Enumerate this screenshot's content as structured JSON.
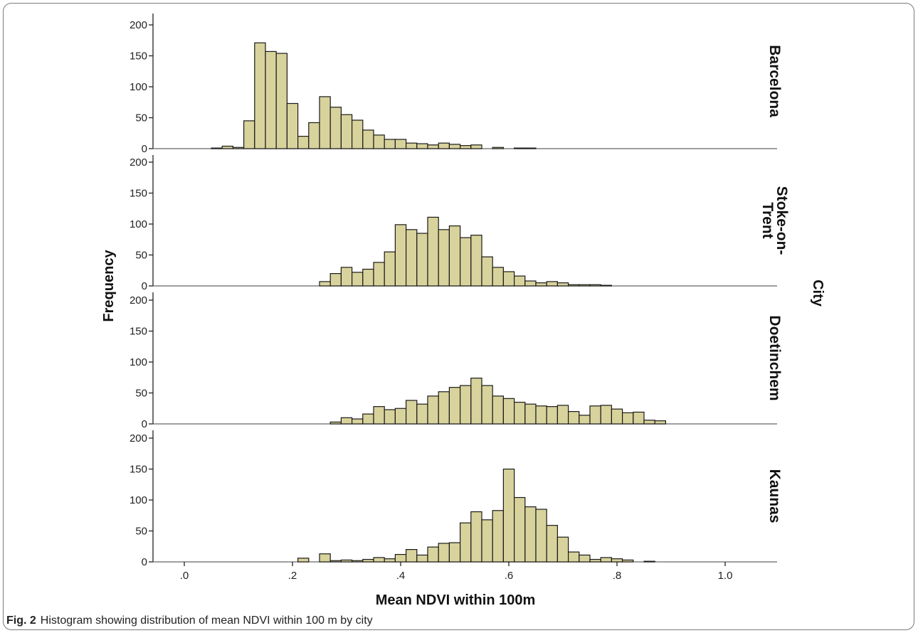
{
  "chart_data": {
    "type": "bar",
    "subtype": "faceted-histogram",
    "xlabel": "Mean NDVI within 100m",
    "ylabel": "Frequency",
    "facet_label": "City",
    "bin_width": 0.02,
    "xlim": [
      -0.05,
      1.07
    ],
    "ylim": [
      0,
      200
    ],
    "xticks": [
      0.0,
      0.2,
      0.4,
      0.6,
      0.8,
      1.0
    ],
    "xtick_labels": [
      ".0",
      ".2",
      ".4",
      ".6",
      ".8",
      "1.0"
    ],
    "yticks": [
      0,
      50,
      100,
      150,
      200
    ],
    "ytick_labels": [
      "0",
      "50",
      "100",
      "150",
      "200"
    ],
    "bar_color": "#d8d39c",
    "bar_edge_color": "#1a1a1a",
    "panels": [
      {
        "name_lines": [
          "Barcelona"
        ],
        "bins": [
          {
            "x": 0.06,
            "y": 1
          },
          {
            "x": 0.08,
            "y": 4
          },
          {
            "x": 0.1,
            "y": 2
          },
          {
            "x": 0.12,
            "y": 45
          },
          {
            "x": 0.14,
            "y": 171
          },
          {
            "x": 0.16,
            "y": 157
          },
          {
            "x": 0.18,
            "y": 154
          },
          {
            "x": 0.2,
            "y": 73
          },
          {
            "x": 0.22,
            "y": 20
          },
          {
            "x": 0.24,
            "y": 42
          },
          {
            "x": 0.26,
            "y": 84
          },
          {
            "x": 0.28,
            "y": 67
          },
          {
            "x": 0.3,
            "y": 55
          },
          {
            "x": 0.32,
            "y": 46
          },
          {
            "x": 0.34,
            "y": 30
          },
          {
            "x": 0.36,
            "y": 22
          },
          {
            "x": 0.38,
            "y": 15
          },
          {
            "x": 0.4,
            "y": 15
          },
          {
            "x": 0.42,
            "y": 9
          },
          {
            "x": 0.44,
            "y": 8
          },
          {
            "x": 0.46,
            "y": 6
          },
          {
            "x": 0.48,
            "y": 9
          },
          {
            "x": 0.5,
            "y": 7
          },
          {
            "x": 0.52,
            "y": 5
          },
          {
            "x": 0.54,
            "y": 6
          },
          {
            "x": 0.58,
            "y": 2
          },
          {
            "x": 0.62,
            "y": 1
          },
          {
            "x": 0.64,
            "y": 1
          }
        ]
      },
      {
        "name_lines": [
          "Stoke-on-",
          "Trent"
        ],
        "bins": [
          {
            "x": 0.26,
            "y": 7
          },
          {
            "x": 0.28,
            "y": 20
          },
          {
            "x": 0.3,
            "y": 30
          },
          {
            "x": 0.32,
            "y": 22
          },
          {
            "x": 0.34,
            "y": 27
          },
          {
            "x": 0.36,
            "y": 38
          },
          {
            "x": 0.38,
            "y": 55
          },
          {
            "x": 0.4,
            "y": 99
          },
          {
            "x": 0.42,
            "y": 91
          },
          {
            "x": 0.44,
            "y": 85
          },
          {
            "x": 0.46,
            "y": 111
          },
          {
            "x": 0.48,
            "y": 91
          },
          {
            "x": 0.5,
            "y": 97
          },
          {
            "x": 0.52,
            "y": 78
          },
          {
            "x": 0.54,
            "y": 82
          },
          {
            "x": 0.56,
            "y": 47
          },
          {
            "x": 0.58,
            "y": 30
          },
          {
            "x": 0.6,
            "y": 23
          },
          {
            "x": 0.62,
            "y": 16
          },
          {
            "x": 0.64,
            "y": 8
          },
          {
            "x": 0.66,
            "y": 5
          },
          {
            "x": 0.68,
            "y": 7
          },
          {
            "x": 0.7,
            "y": 5
          },
          {
            "x": 0.72,
            "y": 2
          },
          {
            "x": 0.74,
            "y": 2
          },
          {
            "x": 0.76,
            "y": 2
          },
          {
            "x": 0.78,
            "y": 1
          }
        ]
      },
      {
        "name_lines": [
          "Doetinchem"
        ],
        "bins": [
          {
            "x": 0.28,
            "y": 3
          },
          {
            "x": 0.3,
            "y": 10
          },
          {
            "x": 0.32,
            "y": 8
          },
          {
            "x": 0.34,
            "y": 16
          },
          {
            "x": 0.36,
            "y": 28
          },
          {
            "x": 0.38,
            "y": 23
          },
          {
            "x": 0.4,
            "y": 25
          },
          {
            "x": 0.42,
            "y": 38
          },
          {
            "x": 0.44,
            "y": 32
          },
          {
            "x": 0.46,
            "y": 45
          },
          {
            "x": 0.48,
            "y": 52
          },
          {
            "x": 0.5,
            "y": 59
          },
          {
            "x": 0.52,
            "y": 62
          },
          {
            "x": 0.54,
            "y": 74
          },
          {
            "x": 0.56,
            "y": 62
          },
          {
            "x": 0.58,
            "y": 45
          },
          {
            "x": 0.6,
            "y": 41
          },
          {
            "x": 0.62,
            "y": 35
          },
          {
            "x": 0.64,
            "y": 32
          },
          {
            "x": 0.66,
            "y": 29
          },
          {
            "x": 0.68,
            "y": 28
          },
          {
            "x": 0.7,
            "y": 30
          },
          {
            "x": 0.72,
            "y": 20
          },
          {
            "x": 0.74,
            "y": 14
          },
          {
            "x": 0.76,
            "y": 29
          },
          {
            "x": 0.78,
            "y": 30
          },
          {
            "x": 0.8,
            "y": 24
          },
          {
            "x": 0.82,
            "y": 18
          },
          {
            "x": 0.84,
            "y": 19
          },
          {
            "x": 0.86,
            "y": 6
          },
          {
            "x": 0.88,
            "y": 5
          }
        ]
      },
      {
        "name_lines": [
          "Kaunas"
        ],
        "bins": [
          {
            "x": 0.22,
            "y": 6
          },
          {
            "x": 0.26,
            "y": 13
          },
          {
            "x": 0.28,
            "y": 2
          },
          {
            "x": 0.3,
            "y": 3
          },
          {
            "x": 0.32,
            "y": 2
          },
          {
            "x": 0.34,
            "y": 4
          },
          {
            "x": 0.36,
            "y": 7
          },
          {
            "x": 0.38,
            "y": 5
          },
          {
            "x": 0.4,
            "y": 12
          },
          {
            "x": 0.42,
            "y": 20
          },
          {
            "x": 0.44,
            "y": 11
          },
          {
            "x": 0.46,
            "y": 24
          },
          {
            "x": 0.48,
            "y": 30
          },
          {
            "x": 0.5,
            "y": 31
          },
          {
            "x": 0.52,
            "y": 63
          },
          {
            "x": 0.54,
            "y": 81
          },
          {
            "x": 0.56,
            "y": 68
          },
          {
            "x": 0.58,
            "y": 83
          },
          {
            "x": 0.6,
            "y": 150
          },
          {
            "x": 0.62,
            "y": 104
          },
          {
            "x": 0.64,
            "y": 89
          },
          {
            "x": 0.66,
            "y": 85
          },
          {
            "x": 0.68,
            "y": 59
          },
          {
            "x": 0.7,
            "y": 40
          },
          {
            "x": 0.72,
            "y": 16
          },
          {
            "x": 0.74,
            "y": 11
          },
          {
            "x": 0.76,
            "y": 4
          },
          {
            "x": 0.78,
            "y": 7
          },
          {
            "x": 0.8,
            "y": 5
          },
          {
            "x": 0.82,
            "y": 3
          },
          {
            "x": 0.86,
            "y": 1
          }
        ]
      }
    ]
  },
  "caption": {
    "label": "Fig. 2",
    "text": "Histogram showing distribution of mean NDVI within 100 m by city"
  }
}
